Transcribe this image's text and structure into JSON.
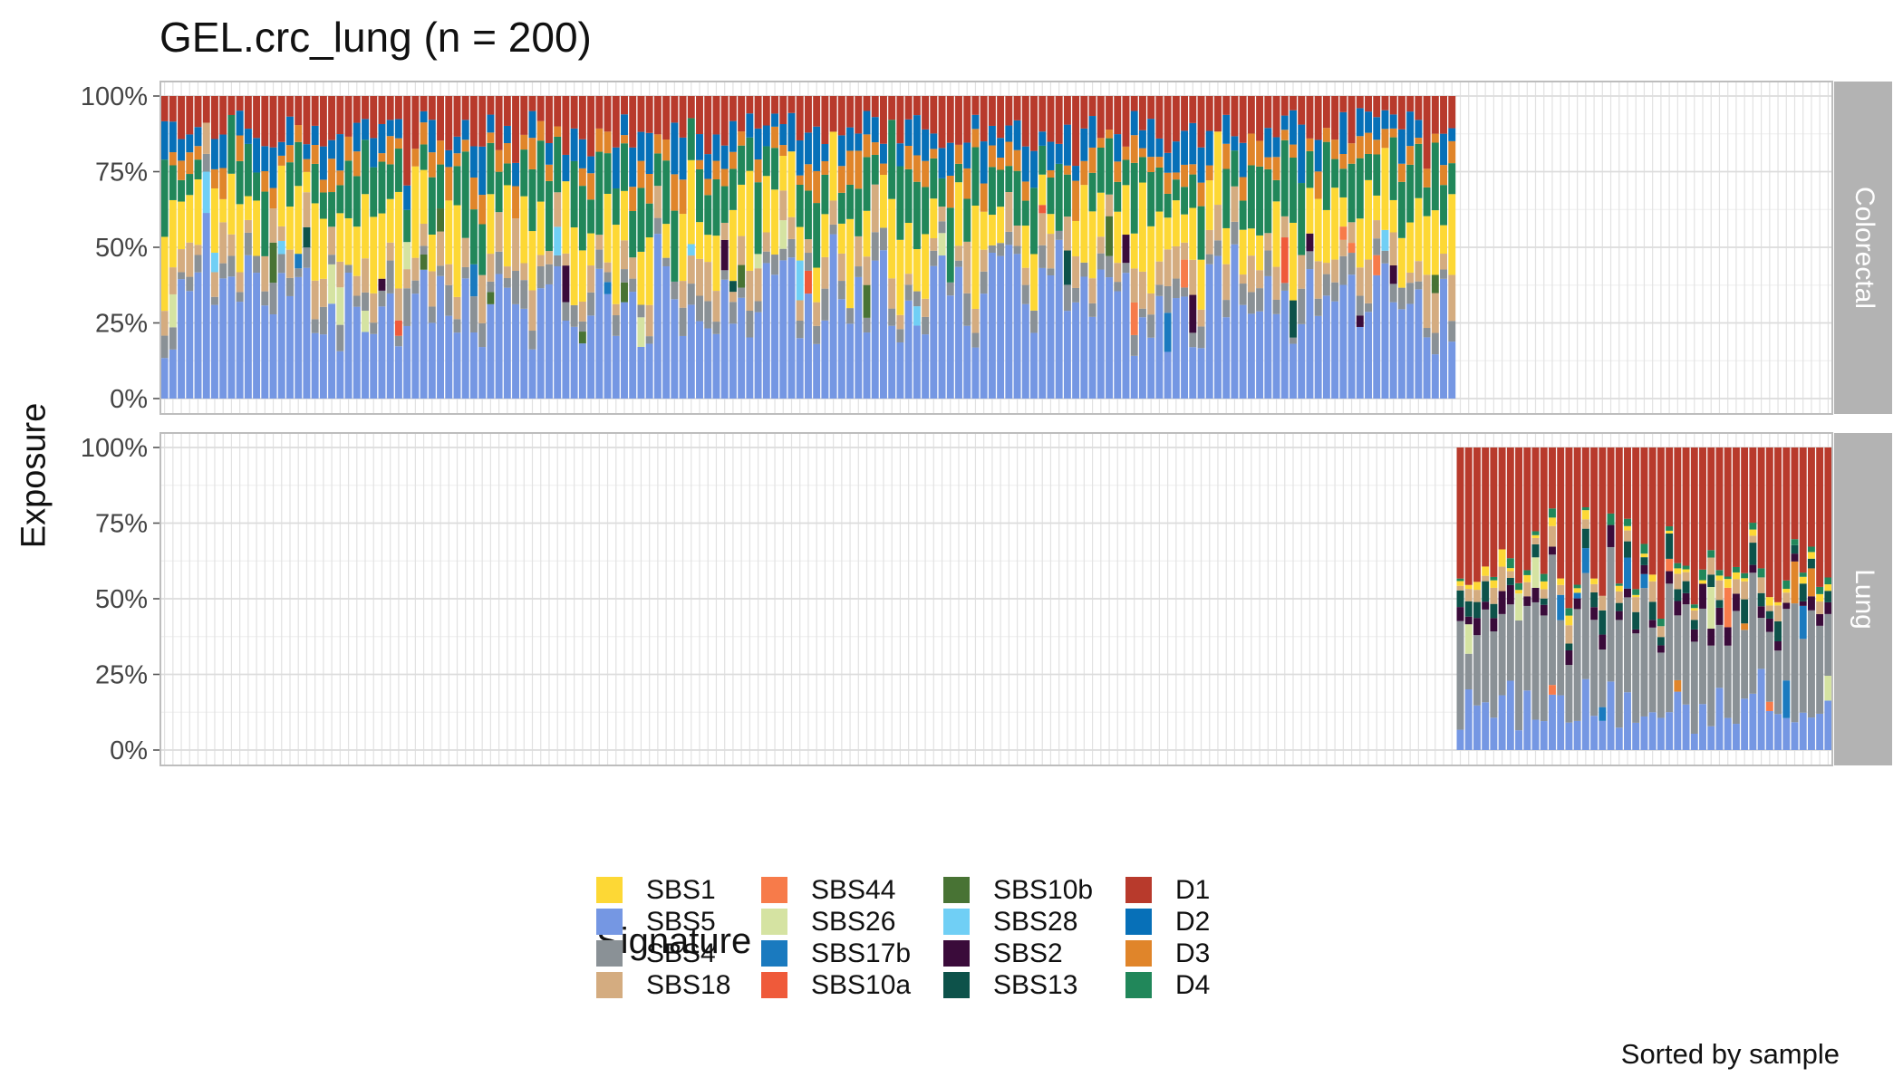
{
  "chart_data": {
    "type": "bar",
    "stacked": true,
    "title": "GEL.crc_lung (n = 200)",
    "ylabel": "Exposure",
    "xlabel": "",
    "caption": "Sorted by sample",
    "ylim": [
      0,
      1
    ],
    "y_ticks": [
      "0%",
      "25%",
      "50%",
      "75%",
      "100%"
    ],
    "n_samples": 200,
    "grid": true,
    "legend": {
      "title": "Signature",
      "position": "bottom",
      "columns": 4,
      "entries": [
        {
          "name": "SBS1",
          "color": "#fdd835"
        },
        {
          "name": "SBS5",
          "color": "#7597e3"
        },
        {
          "name": "SBS4",
          "color": "#8a9196"
        },
        {
          "name": "SBS18",
          "color": "#d4ac80"
        },
        {
          "name": "SBS44",
          "color": "#f77b4a"
        },
        {
          "name": "SBS26",
          "color": "#d5e3a2"
        },
        {
          "name": "SBS17b",
          "color": "#1a7abf"
        },
        {
          "name": "SBS10a",
          "color": "#ef5a3a"
        },
        {
          "name": "SBS10b",
          "color": "#487334"
        },
        {
          "name": "SBS28",
          "color": "#70cff5"
        },
        {
          "name": "SBS2",
          "color": "#3a0b3a"
        },
        {
          "name": "SBS13",
          "color": "#0d524a"
        },
        {
          "name": "D1",
          "color": "#b83a2c"
        },
        {
          "name": "D2",
          "color": "#0770b8"
        },
        {
          "name": "D3",
          "color": "#e0852a"
        },
        {
          "name": "D4",
          "color": "#21875a"
        }
      ]
    },
    "panels": [
      {
        "label": "Colorectal",
        "sample_range": [
          1,
          155
        ],
        "stack_order": [
          "SBS5",
          "SBS4",
          "SBS18",
          "SBS1",
          "D4",
          "D3",
          "D2",
          "D1"
        ],
        "typical_exposure": {
          "SBS5": 0.3,
          "SBS4": 0.05,
          "SBS18": 0.08,
          "SBS1": 0.17,
          "D4": 0.15,
          "D3": 0.06,
          "D2": 0.08,
          "D1": 0.11
        },
        "minor_signatures": [
          "SBS44",
          "SBS26",
          "SBS17b",
          "SBS10a",
          "SBS10b",
          "SBS28",
          "SBS2",
          "SBS13"
        ]
      },
      {
        "label": "Lung",
        "sample_range": [
          156,
          200
        ],
        "stack_order": [
          "SBS5",
          "SBS4",
          "SBS2",
          "SBS13",
          "SBS18",
          "SBS1",
          "D4",
          "D1"
        ],
        "typical_exposure": {
          "SBS5": 0.14,
          "SBS4": 0.3,
          "SBS2": 0.04,
          "SBS13": 0.05,
          "SBS18": 0.04,
          "SBS1": 0.02,
          "D4": 0.02,
          "D1": 0.39
        },
        "minor_signatures": [
          "SBS44",
          "SBS26",
          "SBS17b",
          "D3"
        ]
      }
    ]
  }
}
